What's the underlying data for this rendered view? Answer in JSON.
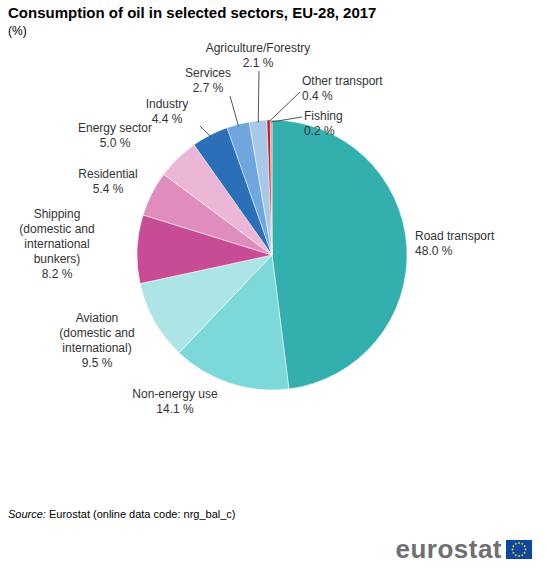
{
  "chart_data": {
    "type": "pie",
    "title": "Consumption of oil in selected sectors, EU-28, 2017",
    "subtitle": "(%)",
    "categories": [
      "Road transport",
      "Non-energy use",
      "Aviation (domestic and international)",
      "Shipping (domestic and international bunkers)",
      "Residential",
      "Energy sector",
      "Industry",
      "Services",
      "Agriculture/Forestry",
      "Other transport",
      "Fishing"
    ],
    "values": [
      48.0,
      14.1,
      9.5,
      8.2,
      5.4,
      5.0,
      4.4,
      2.7,
      2.1,
      0.4,
      0.2
    ],
    "value_labels": [
      "48.0 %",
      "14.1 %",
      "9.5 %",
      "8.2 %",
      "5.4 %",
      "5.0 %",
      "4.4 %",
      "2.7 %",
      "2.1 %",
      "0.4 %",
      "0.2 %"
    ],
    "colors": [
      "#33b0ae",
      "#7dd9d9",
      "#ade5e6",
      "#c84b95",
      "#e08dbd",
      "#ecb7d6",
      "#2a6fb8",
      "#6ea6dd",
      "#a8c8ea",
      "#c0202a",
      "#f08080"
    ],
    "data_labels": true,
    "source": "Source: Eurostat (online data code: nrg_bal_c)",
    "logo": "eurostat"
  }
}
